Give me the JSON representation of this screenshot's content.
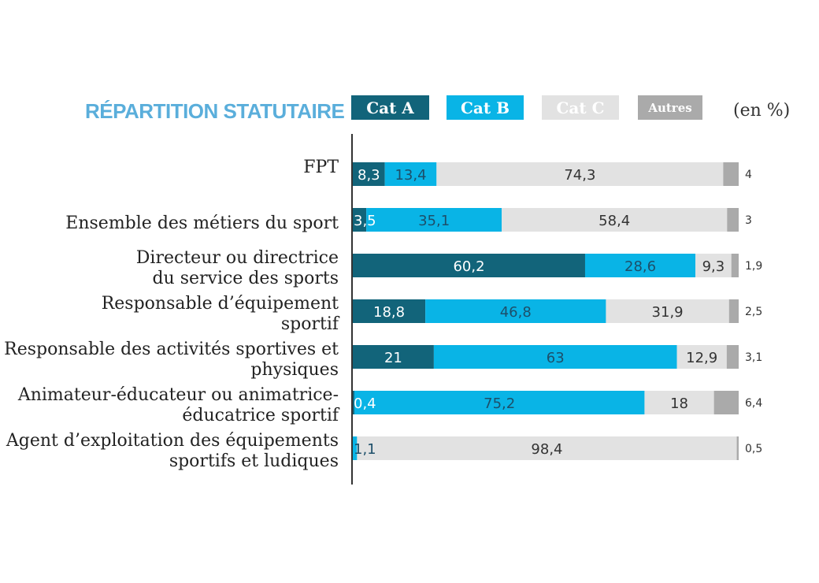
{
  "chart_data": {
    "type": "bar",
    "stacked": true,
    "orientation": "horizontal",
    "title": "RÉPARTITION STATUTAIRE",
    "unit": "(en %)",
    "xlim": [
      0,
      100
    ],
    "categories": [
      [
        "FPT"
      ],
      [
        "Ensemble des métiers du sport"
      ],
      [
        "Directeur ou directrice",
        "du service des sports"
      ],
      [
        "Responsable d’équipement",
        "sportif"
      ],
      [
        "Responsable des activités sportives et",
        "physiques"
      ],
      [
        "Animateur-éducateur ou animatrice-",
        "éducatrice sportif"
      ],
      [
        "Agent d’exploitation des équipements",
        "sportifs et ludiques"
      ]
    ],
    "series": [
      {
        "name": "Cat A",
        "color": "#12647a",
        "text_color": "#ffffff",
        "values": [
          8.3,
          3.5,
          60.2,
          18.8,
          21,
          0.4,
          0.0
        ]
      },
      {
        "name": "Cat B",
        "color": "#09b4e6",
        "text_color": "#1d4f6a",
        "values": [
          13.4,
          35.1,
          28.6,
          46.8,
          63,
          75.2,
          1.1
        ]
      },
      {
        "name": "Cat C",
        "color": "#e2e2e2",
        "text_color": "#333333",
        "values": [
          74.3,
          58.4,
          9.3,
          31.9,
          12.9,
          18,
          98.4
        ]
      },
      {
        "name": "Autres",
        "color": "#aaaaaa",
        "text_color": "#333333",
        "values": [
          4,
          3,
          1.9,
          2.5,
          3.1,
          6.4,
          0.5
        ]
      }
    ],
    "value_labels": [
      [
        "8,3",
        "13,4",
        "74,3",
        "4"
      ],
      [
        "3,5",
        "35,1",
        "58,4",
        "3"
      ],
      [
        "60,2",
        "28,6",
        "9,3",
        "1,9"
      ],
      [
        "18,8",
        "46,8",
        "31,9",
        "2,5"
      ],
      [
        "21",
        "63",
        "12,9",
        "3,1"
      ],
      [
        "0,4",
        "75,2",
        "18",
        "6,4"
      ],
      [
        "",
        "1,1",
        "98,4",
        "0,5"
      ]
    ]
  }
}
